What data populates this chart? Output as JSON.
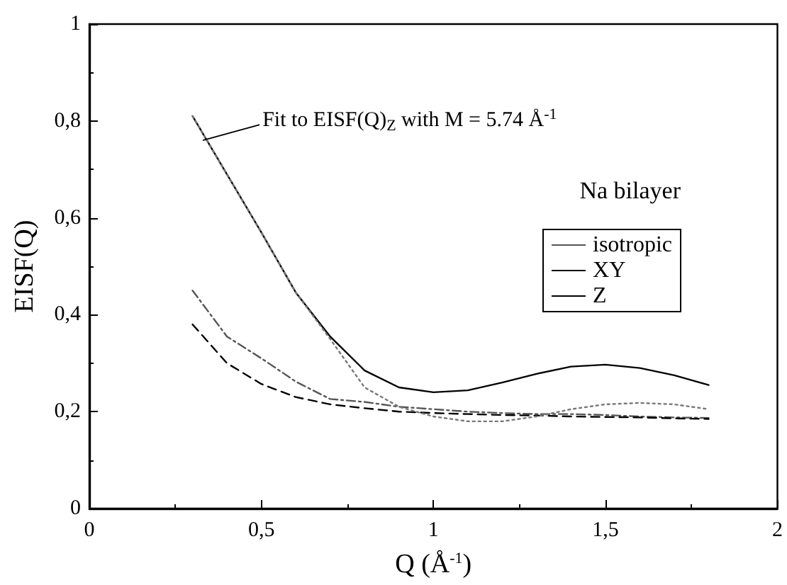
{
  "chart_data": {
    "type": "line",
    "xlabel": "Q (Å$^{-1}$)",
    "ylabel": "EISF(Q)",
    "x": [
      0.3,
      0.4,
      0.5,
      0.6,
      0.7,
      0.8,
      0.9,
      1.0,
      1.1,
      1.2,
      1.3,
      1.4,
      1.5,
      1.6,
      1.7,
      1.8
    ],
    "series": [
      {
        "name": "isotropic",
        "color": "#555555",
        "line_style": "dashdot",
        "values": [
          0.45,
          0.355,
          0.31,
          0.262,
          0.226,
          0.22,
          0.21,
          0.205,
          0.2,
          0.197,
          0.195,
          0.195,
          0.193,
          0.19,
          0.188,
          0.187
        ]
      },
      {
        "name": "XY",
        "color": "#000000",
        "line_style": "dashed",
        "values": [
          0.38,
          0.3,
          0.257,
          0.23,
          0.215,
          0.207,
          0.2,
          0.197,
          0.195,
          0.193,
          0.192,
          0.19,
          0.189,
          0.188,
          0.186,
          0.185
        ]
      },
      {
        "name": "Z",
        "color": "#000000",
        "line_style": "solid",
        "values": [
          0.81,
          0.69,
          0.57,
          0.446,
          0.355,
          0.285,
          0.25,
          0.24,
          0.244,
          0.26,
          0.278,
          0.293,
          0.297,
          0.29,
          0.275,
          0.255
        ]
      },
      {
        "color": "#777777",
        "line_style": "dotted",
        "values": [
          0.81,
          0.69,
          0.57,
          0.446,
          0.35,
          0.25,
          0.21,
          0.19,
          0.18,
          0.18,
          0.19,
          0.205,
          0.215,
          0.218,
          0.215,
          0.205
        ]
      }
    ],
    "xlim": [
      0,
      2
    ],
    "xticks": [
      0,
      {
        "value": 0.5,
        "label": "0,5"
      },
      1,
      {
        "value": 1.5,
        "label": "1,5"
      },
      2
    ],
    "ylim": [
      0,
      1
    ],
    "yticks": [
      0,
      {
        "value": 0.2,
        "label": "0,2"
      },
      {
        "value": 0.4,
        "label": "0,4"
      },
      {
        "value": 0.6,
        "label": "0,6"
      },
      {
        "value": 0.8,
        "label": "0,8"
      },
      1
    ],
    "grid": false,
    "legend": "right",
    "marker": "none",
    "annotations": [
      {
        "text": "Fit to EISF(Q)$_{Z}$ with M = 5.74 Å$^{-1}$",
        "x": 0.33,
        "y": 0.76
      },
      "Na bilayer"
    ]
  }
}
